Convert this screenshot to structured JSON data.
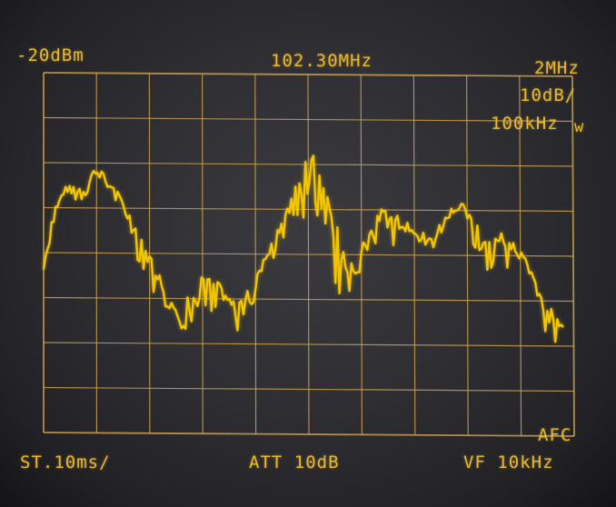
{
  "display": {
    "ref_level": "-20dBm",
    "center_freq": "102.30MHz",
    "span": "2MHz",
    "scale": "10dB/",
    "rbw": "100kHz",
    "sweep_time": "ST.10ms/",
    "attenuation": "ATT 10dB",
    "video_filter": "VF 10kHz",
    "afc": "AFC"
  },
  "colors": {
    "trace": "#f2c500",
    "grid": "#c8a050",
    "text": "#e8b830",
    "background": "#2e2e33"
  }
}
